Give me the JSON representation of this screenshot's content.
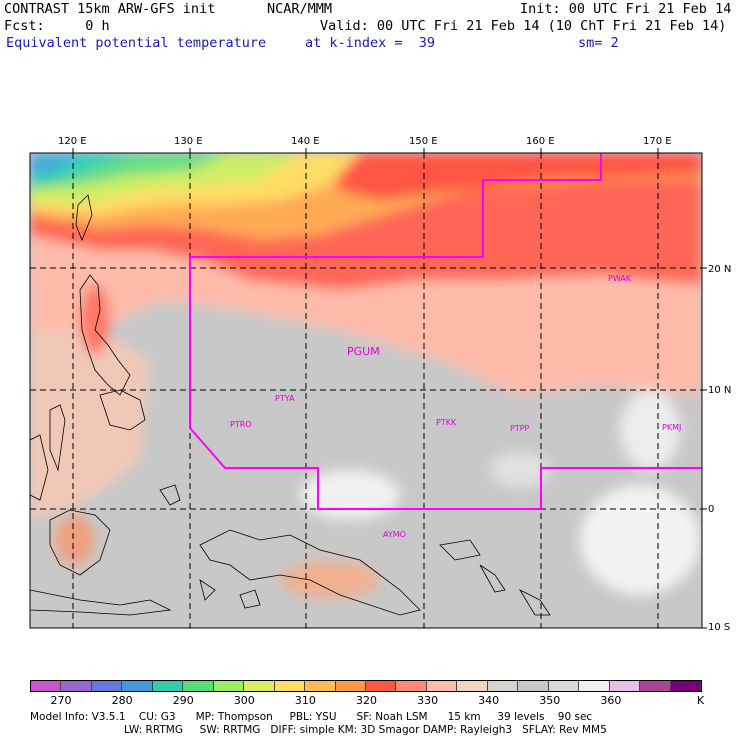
{
  "header": {
    "line1_left": "CONTRAST 15km ARW-GFS init",
    "line1_mid": "NCAR/MMM",
    "line1_right": "Init: 00 UTC Fri 21 Feb 14",
    "fcst": "Fcst:     0 h",
    "valid": "Valid: 00 UTC Fri 21 Feb 14 (10 ChT Fri 21 Feb 14)",
    "field": "Equivalent potential temperature",
    "kindex": "at k-index =  39",
    "sm": "sm= 2"
  },
  "axes": {
    "lon_labels": [
      "120 E",
      "130 E",
      "140 E",
      "150 E",
      "160 E",
      "170 E"
    ],
    "lat_labels": [
      "20 N",
      "10 N",
      "0",
      "10 S"
    ]
  },
  "stations": [
    "PWAK",
    "PGUM",
    "PTYA",
    "PTRO",
    "PTKK",
    "PTPP",
    "PKMJ",
    "AYMO"
  ],
  "colorbar": {
    "colors": [
      "#cc55cc",
      "#9966cc",
      "#6677dd",
      "#4499dd",
      "#33ccaa",
      "#55dd77",
      "#99ee66",
      "#ddee66",
      "#ffdd66",
      "#ffbb55",
      "#ff9944",
      "#ff5544",
      "#ff8877",
      "#ffbbaa",
      "#f0d5c5",
      "#d8d2cc",
      "#c8c8c8",
      "#d8d8d8",
      "#f0f0f0",
      "#e8c0e8",
      "#aa4499",
      "#770077"
    ],
    "labels": [
      "270",
      "280",
      "290",
      "300",
      "310",
      "320",
      "330",
      "340",
      "350",
      "360"
    ],
    "unit": "K"
  },
  "model_info": {
    "line1": "Model Info: V3.5.1    CU: G3      MP: Thompson     PBL: YSU      SF: Noah LSM      15 km     39 levels    90 sec",
    "line2": "LW: RRTMG     SW: RRTMG   DIFF: simple KM: 3D Smagor DAMP: Rayleigh3   SFLAY: Rev MM5"
  }
}
